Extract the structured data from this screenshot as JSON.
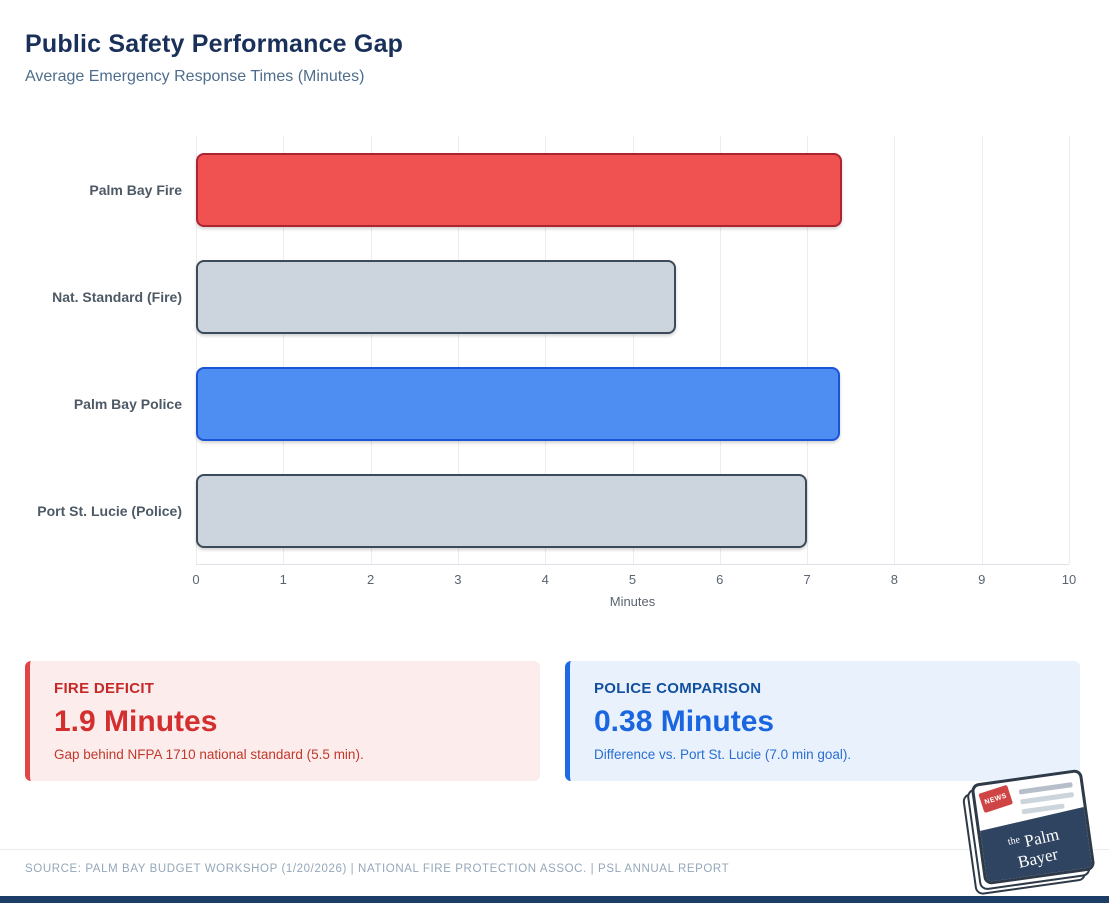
{
  "header": {
    "title": "Public Safety Performance Gap",
    "subtitle": "Average Emergency Response Times (Minutes)"
  },
  "chart_data": {
    "type": "bar",
    "orientation": "horizontal",
    "title": "Public Safety Performance Gap",
    "subtitle": "Average Emergency Response Times (Minutes)",
    "categories": [
      "Palm Bay Fire",
      "Nat. Standard (Fire)",
      "Palm Bay Police",
      "Port St. Lucie (Police)"
    ],
    "values": [
      7.4,
      5.5,
      7.38,
      7.0
    ],
    "bar_colors": [
      "#f05252",
      "#ccd5dd",
      "#4e8df2",
      "#ccd5dd"
    ],
    "bar_border_colors": [
      "#ab2430",
      "#3c4a59",
      "#1a55d6",
      "#3c4a59"
    ],
    "xlabel": "Minutes",
    "xlim": [
      0,
      10
    ],
    "ticks": [
      0,
      1,
      2,
      3,
      4,
      5,
      6,
      7,
      8,
      9,
      10
    ],
    "grid": true,
    "legend": "none"
  },
  "cards": [
    {
      "label": "FIRE DEFICIT",
      "value": "1.9 Minutes",
      "description": "Gap behind NFPA 1710 national standard (5.5 min).",
      "accent": "#e24545"
    },
    {
      "label": "POLICE COMPARISON",
      "value": "0.38 Minutes",
      "description": "Difference vs. Port St. Lucie (7.0 min goal).",
      "accent": "#1d6ae5"
    }
  ],
  "footer": {
    "source": "SOURCE: PALM BAY BUDGET WORKSHOP (1/20/2026) | NATIONAL FIRE PROTECTION ASSOC. | PSL ANNUAL REPORT"
  },
  "logo": {
    "sticker": "NEWS",
    "prefix": "the",
    "name_line1": "Palm",
    "name_line2": "Bayer"
  }
}
